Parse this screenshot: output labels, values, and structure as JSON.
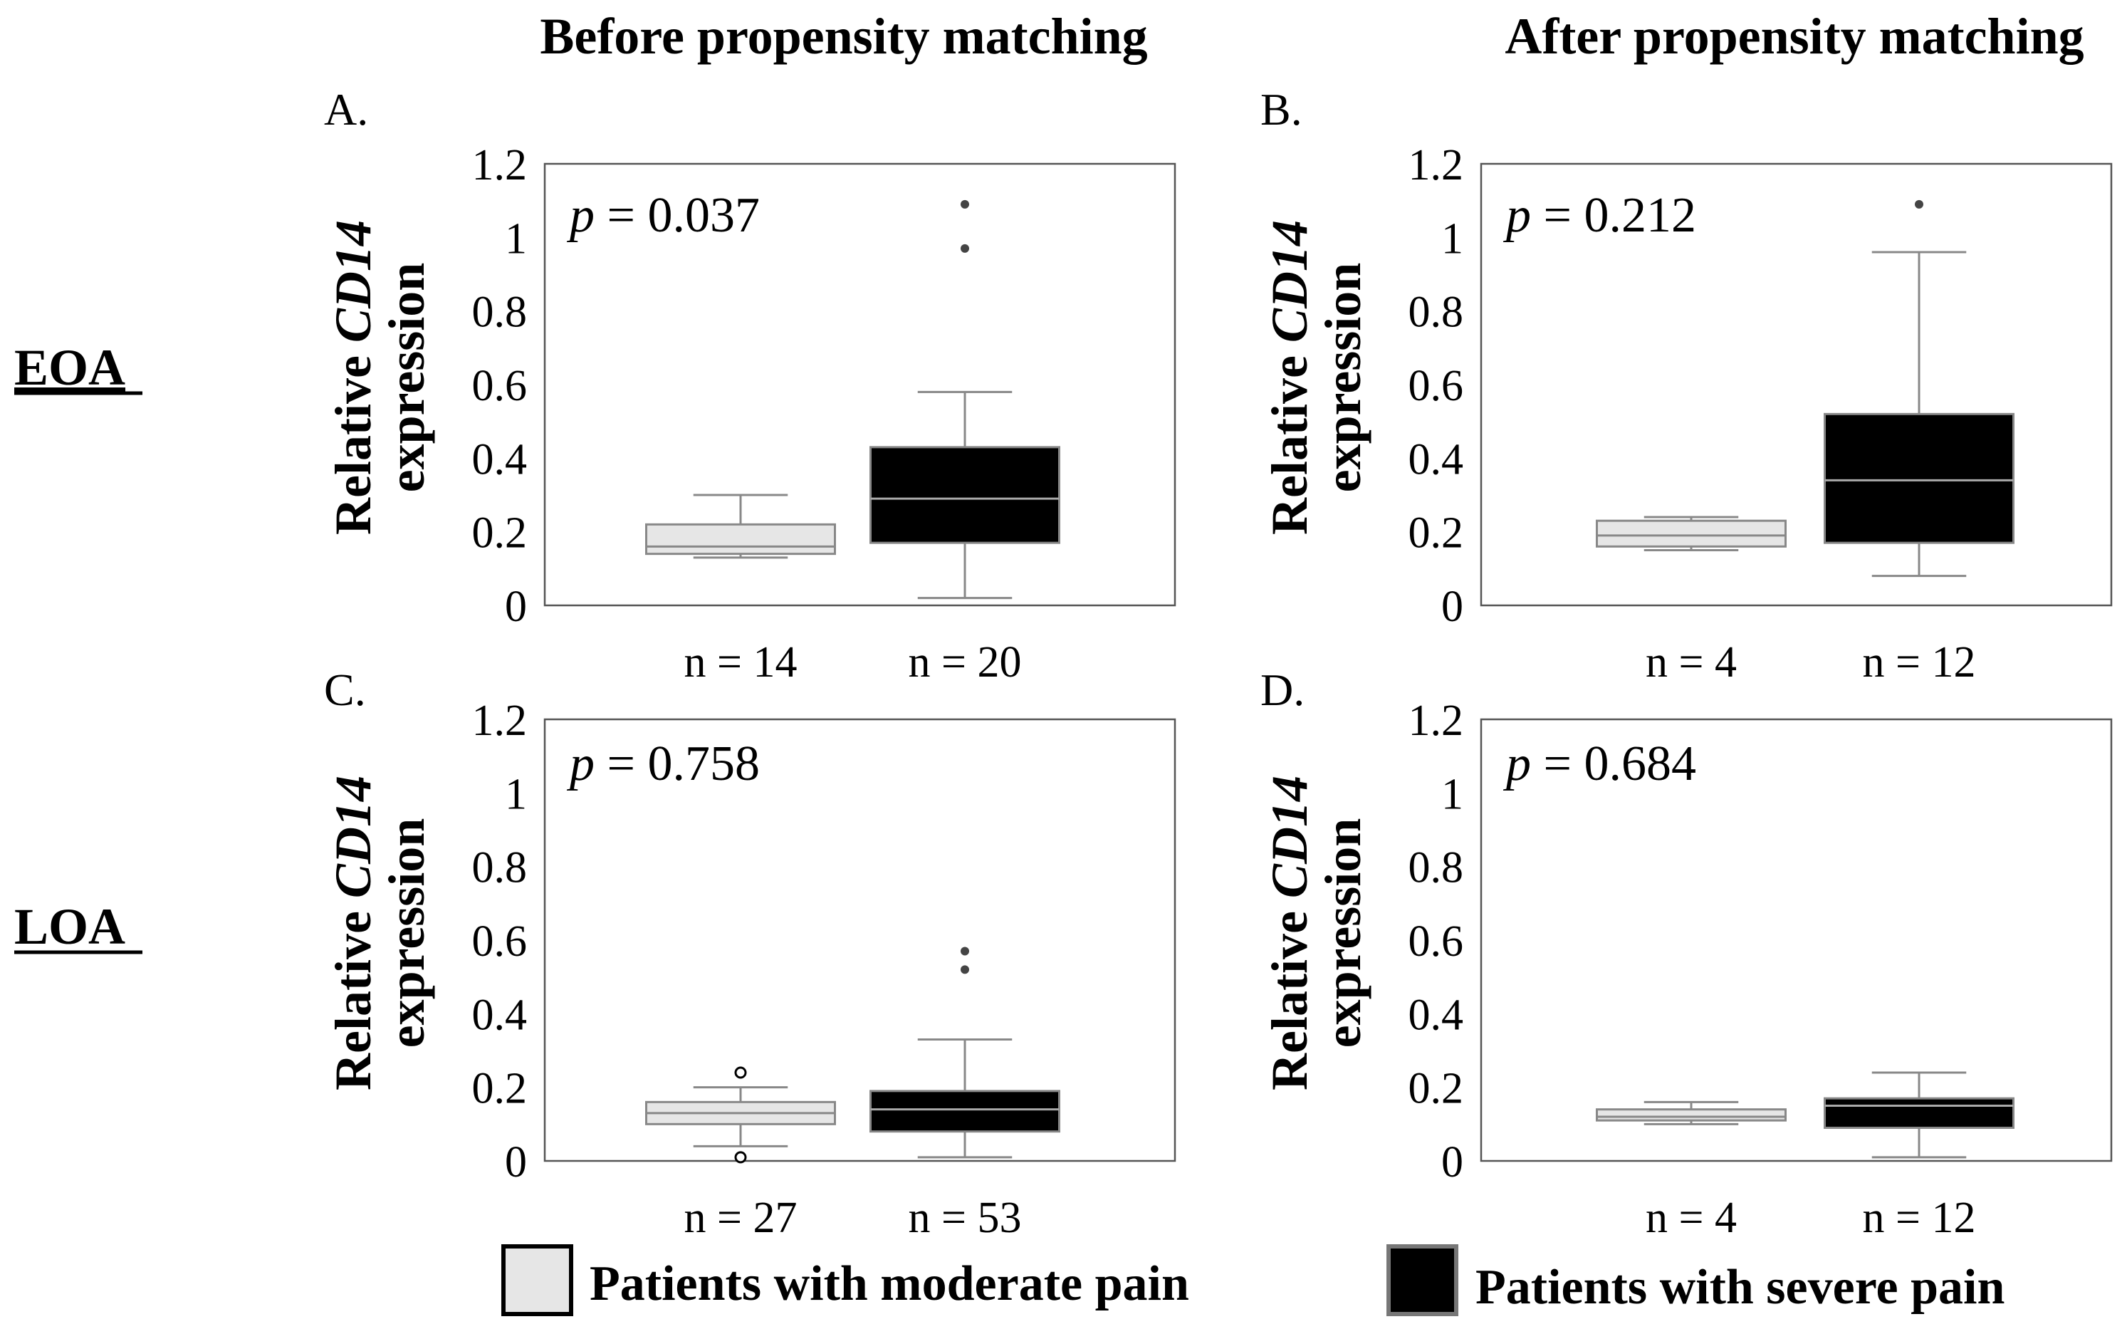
{
  "figure": {
    "column_headers": [
      "Before propensity matching",
      "After propensity matching"
    ],
    "row_labels": [
      "EOA",
      "LOA"
    ],
    "legend": [
      {
        "label": "Patients with moderate pain",
        "color": "#e6e6e6"
      },
      {
        "label": "Patients with severe pain",
        "color": "#000000"
      }
    ],
    "colors": {
      "moderate_fill": "#e6e6e6",
      "severe_fill": "#000000",
      "whisker": "#888888",
      "median_on_black": "#aaaaaa",
      "axis": "#555555"
    }
  },
  "chart_data": [
    {
      "panel": "A.",
      "type": "boxplot",
      "p_label": "p",
      "p_value": "= 0.037",
      "ylabel_prefix": "Relative ",
      "ylabel_gene": "CD14",
      "ylabel_suffix": "expression",
      "ylim": [
        0,
        1.2
      ],
      "yticks": [
        "0",
        "0.2",
        "0.4",
        "0.6",
        "0.8",
        "1",
        "1.2"
      ],
      "groups": [
        {
          "name": "Patients with moderate pain",
          "n_label": "n = 14",
          "whisker_low": 0.13,
          "q1": 0.14,
          "median": 0.16,
          "q3": 0.22,
          "whisker_high": 0.3,
          "outliers": [],
          "open_outliers": []
        },
        {
          "name": "Patients with severe pain",
          "n_label": "n = 20",
          "whisker_low": 0.02,
          "q1": 0.17,
          "median": 0.29,
          "q3": 0.43,
          "whisker_high": 0.58,
          "outliers": [
            0.97,
            1.09
          ],
          "open_outliers": []
        }
      ]
    },
    {
      "panel": "B.",
      "type": "boxplot",
      "p_label": "p",
      "p_value": "= 0.212",
      "ylabel_prefix": "Relative ",
      "ylabel_gene": "CD14",
      "ylabel_suffix": "expression",
      "ylim": [
        0,
        1.2
      ],
      "yticks": [
        "0",
        "0.2",
        "0.4",
        "0.6",
        "0.8",
        "1",
        "1.2"
      ],
      "groups": [
        {
          "name": "Patients with moderate pain",
          "n_label": "n = 4",
          "whisker_low": 0.15,
          "q1": 0.16,
          "median": 0.19,
          "q3": 0.23,
          "whisker_high": 0.24,
          "outliers": [],
          "open_outliers": []
        },
        {
          "name": "Patients with severe pain",
          "n_label": "n = 12",
          "whisker_low": 0.08,
          "q1": 0.17,
          "median": 0.34,
          "q3": 0.52,
          "whisker_high": 0.96,
          "outliers": [
            1.09
          ],
          "open_outliers": []
        }
      ]
    },
    {
      "panel": "C.",
      "type": "boxplot",
      "p_label": "p",
      "p_value": "= 0.758",
      "ylabel_prefix": "Relative ",
      "ylabel_gene": "CD14",
      "ylabel_suffix": "expression",
      "ylim": [
        0,
        1.2
      ],
      "yticks": [
        "0",
        "0.2",
        "0.4",
        "0.6",
        "0.8",
        "1",
        "1.2"
      ],
      "groups": [
        {
          "name": "Patients with moderate pain",
          "n_label": "n = 27",
          "whisker_low": 0.04,
          "q1": 0.1,
          "median": 0.13,
          "q3": 0.16,
          "whisker_high": 0.2,
          "outliers": [],
          "open_outliers": [
            0.01,
            0.24
          ]
        },
        {
          "name": "Patients with severe pain",
          "n_label": "n = 53",
          "whisker_low": 0.01,
          "q1": 0.08,
          "median": 0.14,
          "q3": 0.19,
          "whisker_high": 0.33,
          "outliers": [
            0.52,
            0.57
          ],
          "open_outliers": []
        }
      ]
    },
    {
      "panel": "D.",
      "type": "boxplot",
      "p_label": "p",
      "p_value": "= 0.684",
      "ylabel_prefix": "Relative ",
      "ylabel_gene": "CD14",
      "ylabel_suffix": "expression",
      "ylim": [
        0,
        1.2
      ],
      "yticks": [
        "0",
        "0.2",
        "0.4",
        "0.6",
        "0.8",
        "1",
        "1.2"
      ],
      "groups": [
        {
          "name": "Patients with moderate pain",
          "n_label": "n = 4",
          "whisker_low": 0.1,
          "q1": 0.11,
          "median": 0.12,
          "q3": 0.14,
          "whisker_high": 0.16,
          "outliers": [],
          "open_outliers": []
        },
        {
          "name": "Patients with severe pain",
          "n_label": "n = 12",
          "whisker_low": 0.01,
          "q1": 0.09,
          "median": 0.15,
          "q3": 0.17,
          "whisker_high": 0.24,
          "outliers": [],
          "open_outliers": []
        }
      ]
    }
  ]
}
